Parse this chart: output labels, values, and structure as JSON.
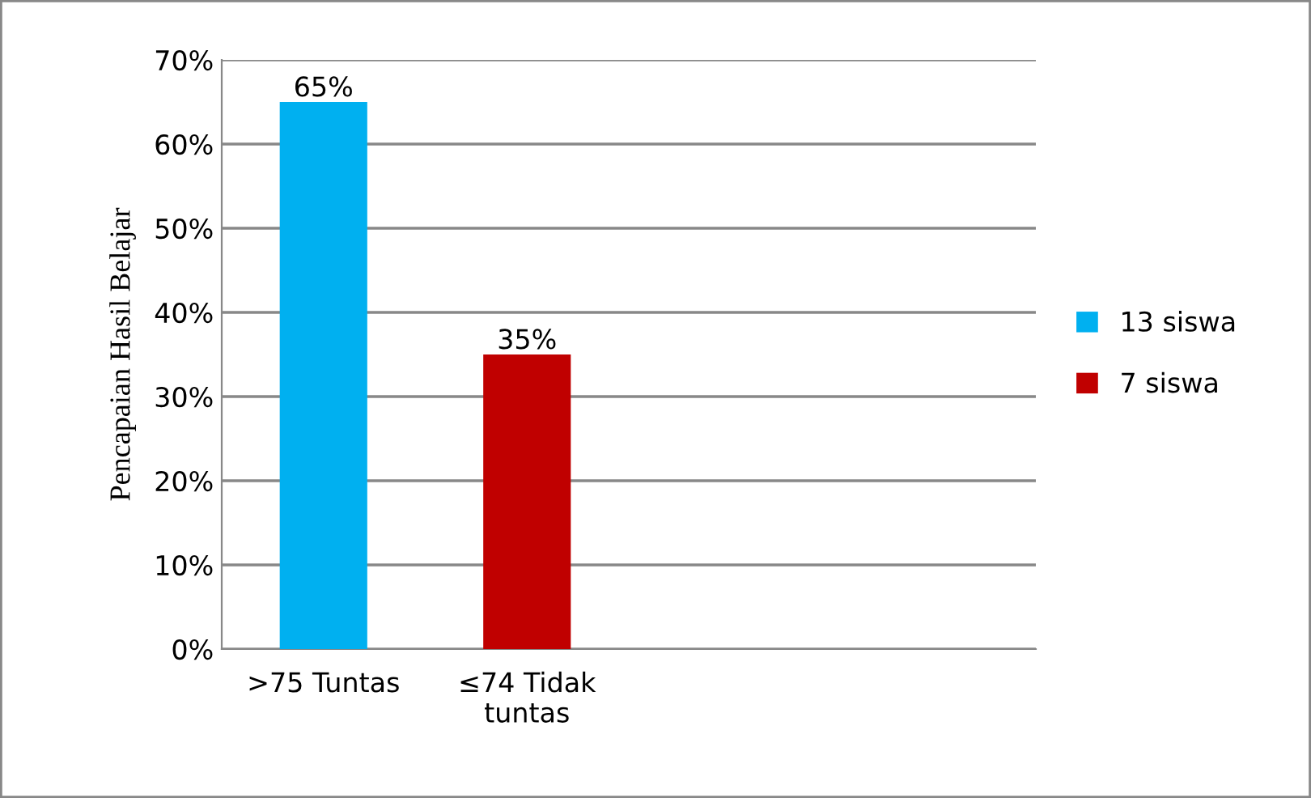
{
  "chart_data": {
    "type": "bar",
    "ylabel": "Pencapaian Hasil Belajar",
    "categories": [
      ">75 Tuntas",
      "≤74 Tidak\ntuntas",
      null,
      null
    ],
    "series": [
      {
        "name": "13 siswa",
        "color": "#00b0f0",
        "values": [
          65,
          null,
          null,
          null
        ]
      },
      {
        "name": "7 siswa",
        "color": "#c00000",
        "values": [
          null,
          35,
          null,
          null
        ]
      }
    ],
    "value_labels": [
      [
        "65%",
        null,
        null,
        null
      ],
      [
        null,
        "35%",
        null,
        null
      ]
    ],
    "ylim": [
      0,
      70
    ],
    "yticks": [
      {
        "value": 0,
        "label": "0%"
      },
      {
        "value": 10,
        "label": "10%"
      },
      {
        "value": 20,
        "label": "20%"
      },
      {
        "value": 30,
        "label": "30%"
      },
      {
        "value": 40,
        "label": "40%"
      },
      {
        "value": 50,
        "label": "50%"
      },
      {
        "value": 60,
        "label": "60%"
      },
      {
        "value": 70,
        "label": "70%"
      }
    ],
    "grid": "y",
    "legend": "right"
  }
}
